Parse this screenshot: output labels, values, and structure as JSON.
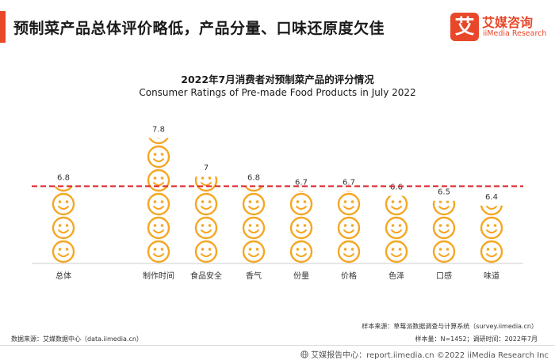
{
  "header": {
    "title": "预制菜产品总体评价略低，产品分量、口味还原度欠佳",
    "logo_mark": "艾",
    "logo_cn": "艾媒咨询",
    "logo_en": "iiMedia Research"
  },
  "chart_data": {
    "type": "bar",
    "title": "2022年7月消费者对预制菜产品的评分情况",
    "subtitle": "Consumer Ratings of Pre-made Food Products in July 2022",
    "categories": [
      "总体",
      "制作时间",
      "食品安全",
      "香气",
      "份量",
      "价格",
      "色泽",
      "口感",
      "味道"
    ],
    "values": [
      6.8,
      7.8,
      7,
      6.8,
      6.7,
      6.7,
      6.6,
      6.5,
      6.4
    ],
    "value_labels": [
      "6.8",
      "7.8",
      "7",
      "6.8",
      "6.7",
      "6.7",
      "6.6",
      "6.5",
      "6.4"
    ],
    "ylim": [
      5.2,
      8.2
    ],
    "reference_line": 6.8,
    "grid": false,
    "colors": {
      "icon": "#f5a623",
      "icon_stroke": "#e89a1a",
      "reference_line": "#d9262c",
      "axis": "#cccccc"
    },
    "mark_icon": "smiley-face-icon"
  },
  "notes": {
    "sample_source": "样本来源：草莓派数据调查与计算系统（survey.iimedia.cn）",
    "sample_size": "样本量：N=1452；调研时间：2022年7月",
    "data_source": "数据来源：艾媒数据中心（data.iimedia.cn）"
  },
  "footer": {
    "icon": "globe-icon",
    "text": "艾媒报告中心：report.iimedia.cn  ©2022  iiMedia Research  Inc"
  }
}
